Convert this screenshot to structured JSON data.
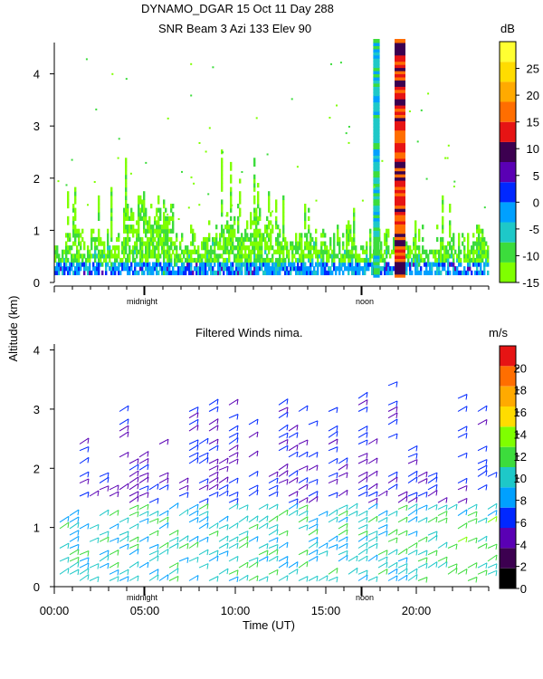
{
  "header": {
    "line1": "DYNAMO_DGAR  15 Oct 11 Day 288",
    "line2": "SNR Beam 3 Azi 133 Elev 90"
  },
  "shared": {
    "ylabel": "Altitude (km)",
    "xlabel": "Time (UT)",
    "marker_midnight": "midnight",
    "marker_noon": "noon"
  },
  "chart_data": [
    {
      "type": "heatmap",
      "title": "SNR Beam 3 Azi 133 Elev 90",
      "ylabel": "Altitude (km)",
      "colorbar_label": "dB",
      "colorbar_range": [
        -15,
        30
      ],
      "colorbar_ticks": [
        "-15",
        "-10",
        "-5",
        "0",
        "5",
        "10",
        "15",
        "20",
        "25"
      ],
      "colorbar_colors": [
        "#7fff00",
        "#3cdc3c",
        "#1ec8c8",
        "#00a0ff",
        "#0028ff",
        "#5a00b4",
        "#3c0050",
        "#e61414",
        "#ff6e00",
        "#ffaa00",
        "#ffdc00",
        "#ffff32"
      ],
      "ylim": [
        0,
        4.6
      ],
      "yticks": [
        "0",
        "1",
        "2",
        "3",
        "4"
      ],
      "xlim": [
        0,
        24
      ],
      "dominant_band_dB": [
        -15,
        -5
      ],
      "rain_events_hours": [
        17.8,
        19.1
      ]
    },
    {
      "type": "scatter",
      "title": "Filtered Winds nima.",
      "xlabel": "Time (UT)",
      "ylabel": "Altitude (km)",
      "colorbar_label": "m/s",
      "colorbar_range": [
        0,
        22
      ],
      "colorbar_ticks": [
        "0",
        "2",
        "4",
        "6",
        "8",
        "10",
        "12",
        "14",
        "16",
        "18",
        "20"
      ],
      "colorbar_colors": [
        "#000000",
        "#3c0050",
        "#5a00b4",
        "#0028ff",
        "#00a0ff",
        "#1ec8c8",
        "#3cdc3c",
        "#7fff00",
        "#ffdc00",
        "#ffaa00",
        "#ff6e00",
        "#e61414"
      ],
      "xticks": [
        "00:00",
        "05:00",
        "10:00",
        "15:00",
        "20:00"
      ],
      "xlim": [
        0,
        24
      ],
      "ylim": [
        0,
        4.1
      ],
      "yticks": [
        "0",
        "1",
        "2",
        "3",
        "4"
      ],
      "description_speed_ms": {
        "low_altitude": [
          8,
          12
        ],
        "upper_altitude": [
          4,
          7
        ]
      }
    }
  ]
}
